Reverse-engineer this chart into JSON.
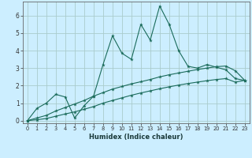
{
  "xlabel": "Humidex (Indice chaleur)",
  "bg_color": "#cceeff",
  "grid_color": "#aacccc",
  "line_color": "#1a6b5a",
  "xlim": [
    -0.5,
    23.5
  ],
  "ylim": [
    -0.15,
    6.8
  ],
  "yticks": [
    0,
    1,
    2,
    3,
    4,
    5,
    6
  ],
  "xticks": [
    0,
    1,
    2,
    3,
    4,
    5,
    6,
    7,
    8,
    9,
    10,
    11,
    12,
    13,
    14,
    15,
    16,
    17,
    18,
    19,
    20,
    21,
    22,
    23
  ],
  "series1_x": [
    0,
    1,
    2,
    3,
    4,
    5,
    6,
    7,
    8,
    9,
    10,
    11,
    12,
    13,
    14,
    15,
    16,
    17,
    18,
    19,
    20,
    21,
    22,
    23
  ],
  "series1_y": [
    0.0,
    0.7,
    1.0,
    1.5,
    1.35,
    0.15,
    0.85,
    1.4,
    3.2,
    4.85,
    3.85,
    3.5,
    5.5,
    4.6,
    6.55,
    5.5,
    4.0,
    3.1,
    3.0,
    3.2,
    3.05,
    2.9,
    2.4,
    2.3
  ],
  "series2_x": [
    0,
    1,
    2,
    3,
    4,
    5,
    6,
    7,
    8,
    9,
    10,
    11,
    12,
    13,
    14,
    15,
    16,
    17,
    18,
    19,
    20,
    21,
    22,
    23
  ],
  "series2_y": [
    0.0,
    0.15,
    0.3,
    0.55,
    0.75,
    0.95,
    1.15,
    1.4,
    1.6,
    1.8,
    1.95,
    2.1,
    2.22,
    2.35,
    2.5,
    2.62,
    2.72,
    2.82,
    2.92,
    3.0,
    3.08,
    3.12,
    2.85,
    2.3
  ],
  "series3_x": [
    0,
    1,
    2,
    3,
    4,
    5,
    6,
    7,
    8,
    9,
    10,
    11,
    12,
    13,
    14,
    15,
    16,
    17,
    18,
    19,
    20,
    21,
    22,
    23
  ],
  "series3_y": [
    0.0,
    0.05,
    0.12,
    0.25,
    0.38,
    0.5,
    0.65,
    0.8,
    1.0,
    1.15,
    1.3,
    1.45,
    1.58,
    1.7,
    1.82,
    1.93,
    2.03,
    2.12,
    2.2,
    2.28,
    2.35,
    2.4,
    2.2,
    2.3
  ]
}
